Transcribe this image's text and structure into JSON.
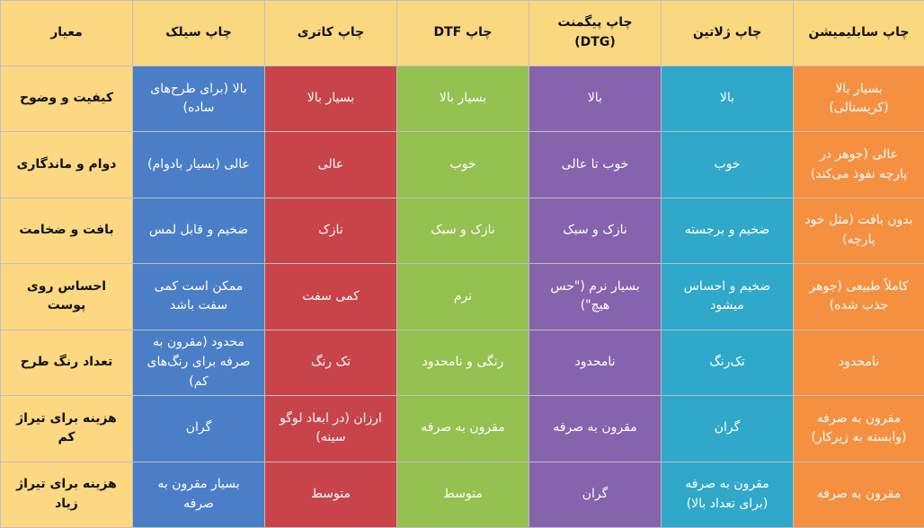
{
  "table": {
    "headers": {
      "sub": "چاپ سابلیمیشن",
      "zel": "چاپ ژلاتین",
      "dtg": "چاپ پیگمنت (DTG)",
      "dtf": "چاپ DTF",
      "kat": "چاپ کاتری",
      "sil": "چاپ سیلک",
      "criterion": "معیار"
    },
    "rows": [
      {
        "sub": "بسیار بالا (کریستالی)",
        "zel": "بالا",
        "dtg": "بالا",
        "dtf": "بسیار بالا",
        "kat": "بسیار بالا",
        "sil": "بالا (برای طرح‌های ساده)",
        "criterion": "کیفیت و وضوح"
      },
      {
        "sub": "عالی (جوهر در پارچه نفوذ می‌کند)",
        "zel": "خوب",
        "dtg": "خوب تا عالی",
        "dtf": "خوب",
        "kat": "عالی",
        "sil": "عالی (بسیار بادوام)",
        "criterion": "دوام و ماندگاری"
      },
      {
        "sub": "بدون بافت (مثل خود پارچه)",
        "zel": "ضخیم و برجسته",
        "dtg": "نازک و سبک",
        "dtf": "نازک و سبک",
        "kat": "نازک",
        "sil": "ضخیم و قابل لمس",
        "criterion": "بافت و ضخامت"
      },
      {
        "sub": "کاملاً طبیعی (جوهر جذب شده)",
        "zel": "ضخیم و احساس میشود",
        "dtg": "بسیار نرم (\"حس هیچ\")",
        "dtf": "نرم",
        "kat": "کمی سفت",
        "sil": "ممکن است کمی سفت باشد",
        "criterion": "احساس روی پوست"
      },
      {
        "sub": "نامحدود",
        "zel": "تک‌رنگ",
        "dtg": "نامحدود",
        "dtf": "رنگی و نامحدود",
        "kat": "تک رنگ",
        "sil": "محدود (مقرون به صرفه برای رنگ‌های کم)",
        "criterion": "تعداد رنگ طرح"
      },
      {
        "sub": "مقرون به صرفه (وابسته به زیرکار)",
        "zel": "گران",
        "dtg": "مقرون به صرفه",
        "dtf": "مقرون به صرفه",
        "kat": "ارزان (در ابعاد لوگو سینه)",
        "sil": "گران",
        "criterion": "هزینه برای تیراژ کم"
      },
      {
        "sub": "مقرون به صرفه",
        "zel": "مقرون به صرفه (برای تعداد بالا)",
        "dtg": "گران",
        "dtf": "متوسط",
        "kat": "متوسط",
        "sil": "بسیار مقرون به صرفه",
        "criterion": "هزینه برای تیراژ زیاد"
      }
    ]
  },
  "colors": {
    "sub": "#f59040",
    "zel": "#2fa8c9",
    "dtg": "#8563ad",
    "dtf": "#94c150",
    "kat": "#c9434a",
    "sil": "#4a7fc7",
    "criterion": "#fcd882",
    "header": "#fad880"
  }
}
